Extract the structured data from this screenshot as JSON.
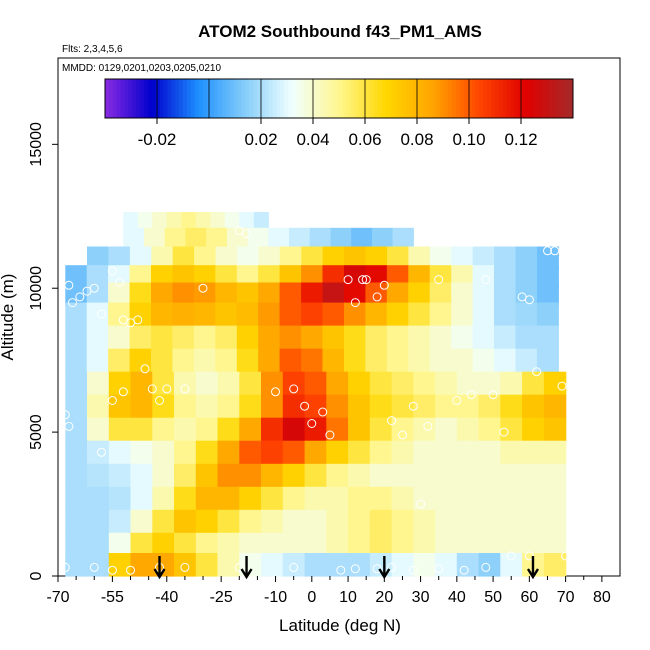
{
  "chart_data": {
    "type": "heatmap",
    "title": "ATOM2 Southbound f43_PM1_AMS",
    "annotations": [
      "Flts: 2,3,4,5,6",
      "MMDD: 0129,0201,0203,0205,0210"
    ],
    "xlabel": "Latitude (deg N)",
    "ylabel": "Altitude (m)",
    "xlim": [
      -70,
      85
    ],
    "ylim": [
      0,
      18000
    ],
    "xticks": [
      -70,
      -55,
      -40,
      -25,
      -10,
      0,
      10,
      20,
      30,
      40,
      50,
      60,
      70,
      80
    ],
    "xtick_labels": [
      "-70",
      "-55",
      "-40",
      "-25",
      "-10",
      "0",
      "10",
      "20",
      "30",
      "40",
      "50",
      "60",
      "70",
      "80"
    ],
    "yticks": [
      0,
      5000,
      10000,
      15000
    ],
    "ytick_labels": [
      "0",
      "5000",
      "10000",
      "15000"
    ],
    "colorbar": {
      "position": "top",
      "range": [
        -0.04,
        0.14
      ],
      "ticks": [
        -0.02,
        0.02,
        0.04,
        0.06,
        0.08,
        0.1,
        0.12
      ],
      "tick_labels": [
        "-0.02",
        "0.02",
        "0.04",
        "0.06",
        "0.08",
        "0.10",
        "0.12"
      ],
      "colors": [
        "#8a2be2",
        "#0000cd",
        "#1e90ff",
        "#87cefa",
        "#f0ffff",
        "#fff68f",
        "#ffd700",
        "#ffa500",
        "#ff4500",
        "#e00000",
        "#a52a2a"
      ]
    },
    "arrows_at_latitude": [
      -42,
      -18,
      20,
      61
    ],
    "field_description": "values along southbound flight curtain",
    "grid": false,
    "data_rows": [
      {
        "alt": 12250,
        "lat_range": [
          -52,
          -12
        ],
        "values": [
          0.03,
          0.035,
          0.04,
          0.045,
          0.05,
          0.045,
          0.04,
          0.035,
          0.03,
          0.025
        ]
      },
      {
        "alt": 11700,
        "lat_range": [
          -52,
          28
        ],
        "values": [
          0.03,
          0.04,
          0.05,
          0.055,
          0.05,
          0.04,
          0.035,
          0.03,
          0.025,
          0.02,
          0.015,
          0.01,
          0.015,
          0.02
        ]
      },
      {
        "alt": 11050,
        "lat_range": [
          -62,
          68
        ],
        "values": [
          0.015,
          0.02,
          0.03,
          0.045,
          0.06,
          0.05,
          0.04,
          0.035,
          0.04,
          0.05,
          0.06,
          0.07,
          0.075,
          0.07,
          0.06,
          0.045,
          0.035,
          0.03,
          0.025,
          0.02,
          0.015,
          0.01
        ]
      },
      {
        "alt": 10400,
        "lat_range": [
          -68,
          68
        ],
        "values": [
          0.01,
          0.02,
          0.03,
          0.05,
          0.07,
          0.075,
          0.07,
          0.06,
          0.05,
          0.06,
          0.075,
          0.09,
          0.11,
          0.125,
          0.12,
          0.1,
          0.08,
          0.06,
          0.045,
          0.03,
          0.02,
          0.015,
          0.01
        ]
      },
      {
        "alt": 9800,
        "lat_range": [
          -68,
          68
        ],
        "values": [
          0.01,
          0.02,
          0.04,
          0.065,
          0.085,
          0.09,
          0.088,
          0.08,
          0.075,
          0.085,
          0.1,
          0.115,
          0.13,
          0.12,
          0.1,
          0.085,
          0.07,
          0.055,
          0.04,
          0.03,
          0.02,
          0.015,
          0.01
        ]
      },
      {
        "alt": 9100,
        "lat_range": [
          -68,
          68
        ],
        "values": [
          0.02,
          0.03,
          0.05,
          0.07,
          0.08,
          0.082,
          0.08,
          0.075,
          0.078,
          0.088,
          0.1,
          0.105,
          0.1,
          0.09,
          0.08,
          0.07,
          0.06,
          0.05,
          0.04,
          0.03,
          0.02,
          0.018,
          0.015
        ]
      },
      {
        "alt": 8300,
        "lat_range": [
          -68,
          68
        ],
        "values": [
          0.02,
          0.03,
          0.04,
          0.055,
          0.06,
          0.055,
          0.05,
          0.055,
          0.07,
          0.085,
          0.09,
          0.085,
          0.075,
          0.065,
          0.055,
          0.05,
          0.045,
          0.04,
          0.035,
          0.03,
          0.025,
          0.02,
          0.02
        ]
      },
      {
        "alt": 7500,
        "lat_range": [
          -68,
          68
        ],
        "values": [
          0.02,
          0.03,
          0.055,
          0.07,
          0.06,
          0.05,
          0.045,
          0.05,
          0.065,
          0.085,
          0.1,
          0.095,
          0.08,
          0.065,
          0.055,
          0.05,
          0.045,
          0.04,
          0.04,
          0.035,
          0.03,
          0.025,
          0.02
        ]
      },
      {
        "alt": 6700,
        "lat_range": [
          -68,
          70
        ],
        "values": [
          0.02,
          0.04,
          0.07,
          0.08,
          0.06,
          0.045,
          0.04,
          0.045,
          0.06,
          0.09,
          0.105,
          0.1,
          0.085,
          0.07,
          0.06,
          0.055,
          0.05,
          0.045,
          0.04,
          0.04,
          0.045,
          0.06,
          0.07
        ]
      },
      {
        "alt": 5900,
        "lat_range": [
          -68,
          70
        ],
        "values": [
          0.02,
          0.045,
          0.075,
          0.08,
          0.065,
          0.05,
          0.045,
          0.05,
          0.065,
          0.09,
          0.11,
          0.105,
          0.09,
          0.075,
          0.065,
          0.06,
          0.055,
          0.05,
          0.05,
          0.055,
          0.065,
          0.075,
          0.08
        ]
      },
      {
        "alt": 5100,
        "lat_range": [
          -68,
          70
        ],
        "values": [
          0.02,
          0.04,
          0.06,
          0.06,
          0.05,
          0.045,
          0.05,
          0.065,
          0.085,
          0.11,
          0.125,
          0.115,
          0.095,
          0.075,
          0.06,
          0.05,
          0.045,
          0.04,
          0.045,
          0.05,
          0.06,
          0.07,
          0.075
        ]
      },
      {
        "alt": 4300,
        "lat_range": [
          -68,
          70
        ],
        "values": [
          0.02,
          0.025,
          0.03,
          0.035,
          0.04,
          0.05,
          0.065,
          0.085,
          0.1,
          0.105,
          0.1,
          0.085,
          0.07,
          0.06,
          0.05,
          0.045,
          0.04,
          0.04,
          0.04,
          0.04,
          0.045,
          0.045,
          0.045
        ]
      },
      {
        "alt": 3500,
        "lat_range": [
          -68,
          70
        ],
        "values": [
          0.02,
          0.022,
          0.025,
          0.03,
          0.04,
          0.055,
          0.075,
          0.09,
          0.09,
          0.08,
          0.07,
          0.06,
          0.05,
          0.045,
          0.04,
          0.04,
          0.04,
          0.04,
          0.04,
          0.04,
          0.04,
          0.04,
          0.04
        ]
      },
      {
        "alt": 2700,
        "lat_range": [
          -68,
          70
        ],
        "values": [
          0.02,
          0.02,
          0.022,
          0.03,
          0.045,
          0.065,
          0.08,
          0.08,
          0.07,
          0.06,
          0.05,
          0.045,
          0.045,
          0.05,
          0.05,
          0.045,
          0.04,
          0.04,
          0.04,
          0.04,
          0.04,
          0.04,
          0.04
        ]
      },
      {
        "alt": 1900,
        "lat_range": [
          -68,
          70
        ],
        "values": [
          0.02,
          0.02,
          0.025,
          0.04,
          0.06,
          0.075,
          0.07,
          0.06,
          0.05,
          0.045,
          0.04,
          0.04,
          0.045,
          0.05,
          0.055,
          0.05,
          0.045,
          0.04,
          0.04,
          0.04,
          0.04,
          0.04,
          0.04
        ]
      },
      {
        "alt": 1100,
        "lat_range": [
          -68,
          70
        ],
        "values": [
          0.02,
          0.02,
          0.035,
          0.06,
          0.07,
          0.06,
          0.05,
          0.045,
          0.04,
          0.04,
          0.04,
          0.04,
          0.045,
          0.05,
          0.055,
          0.05,
          0.045,
          0.04,
          0.04,
          0.04,
          0.04,
          0.04,
          0.04
        ]
      },
      {
        "alt": 400,
        "lat_range": [
          -68,
          70
        ],
        "values": [
          0.02,
          0.02,
          0.07,
          0.085,
          0.085,
          0.075,
          0.06,
          0.045,
          0.035,
          0.03,
          0.025,
          0.02,
          0.02,
          0.02,
          0.025,
          0.03,
          0.035,
          0.03,
          0.02,
          0.015,
          0.03,
          0.05,
          0.055
        ]
      }
    ],
    "sample_points": [
      [
        -67,
        10100
      ],
      [
        -66,
        9500
      ],
      [
        -64,
        9700
      ],
      [
        -62,
        9900
      ],
      [
        -60,
        10000
      ],
      [
        -58,
        9100
      ],
      [
        -55,
        10600
      ],
      [
        -53,
        10200
      ],
      [
        -52,
        8900
      ],
      [
        -50,
        8800
      ],
      [
        -48,
        8900
      ],
      [
        -46,
        7200
      ],
      [
        -44,
        6500
      ],
      [
        -42,
        6100
      ],
      [
        -40,
        6500
      ],
      [
        -35,
        6500
      ],
      [
        -30,
        10000
      ],
      [
        -20,
        12000
      ],
      [
        -18,
        11900
      ],
      [
        -10,
        6400
      ],
      [
        -5,
        6500
      ],
      [
        -2,
        5900
      ],
      [
        0,
        5300
      ],
      [
        3,
        5700
      ],
      [
        5,
        4900
      ],
      [
        10,
        10300
      ],
      [
        12,
        9500
      ],
      [
        14,
        10300
      ],
      [
        15,
        10300
      ],
      [
        18,
        9700
      ],
      [
        20,
        10100
      ],
      [
        22,
        5400
      ],
      [
        25,
        4900
      ],
      [
        28,
        5900
      ],
      [
        30,
        2500
      ],
      [
        32,
        5200
      ],
      [
        35,
        10300
      ],
      [
        40,
        6100
      ],
      [
        44,
        6300
      ],
      [
        48,
        10300
      ],
      [
        50,
        6300
      ],
      [
        53,
        5000
      ],
      [
        58,
        9700
      ],
      [
        60,
        9600
      ],
      [
        62,
        7100
      ],
      [
        65,
        11300
      ],
      [
        67,
        11300
      ],
      [
        69,
        6600
      ],
      [
        70,
        700
      ],
      [
        -68,
        5600
      ],
      [
        -67,
        5200
      ],
      [
        -58,
        4300
      ],
      [
        -55,
        6100
      ],
      [
        -52,
        6400
      ],
      [
        -68,
        300
      ],
      [
        -60,
        300
      ],
      [
        -55,
        200
      ],
      [
        -50,
        200
      ],
      [
        -42,
        300
      ],
      [
        -35,
        300
      ],
      [
        -20,
        300
      ],
      [
        -5,
        300
      ],
      [
        8,
        200
      ],
      [
        12,
        250
      ],
      [
        18,
        250
      ],
      [
        22,
        300
      ],
      [
        28,
        200
      ],
      [
        35,
        250
      ],
      [
        42,
        200
      ],
      [
        48,
        300
      ],
      [
        55,
        700
      ],
      [
        60,
        700
      ]
    ]
  }
}
